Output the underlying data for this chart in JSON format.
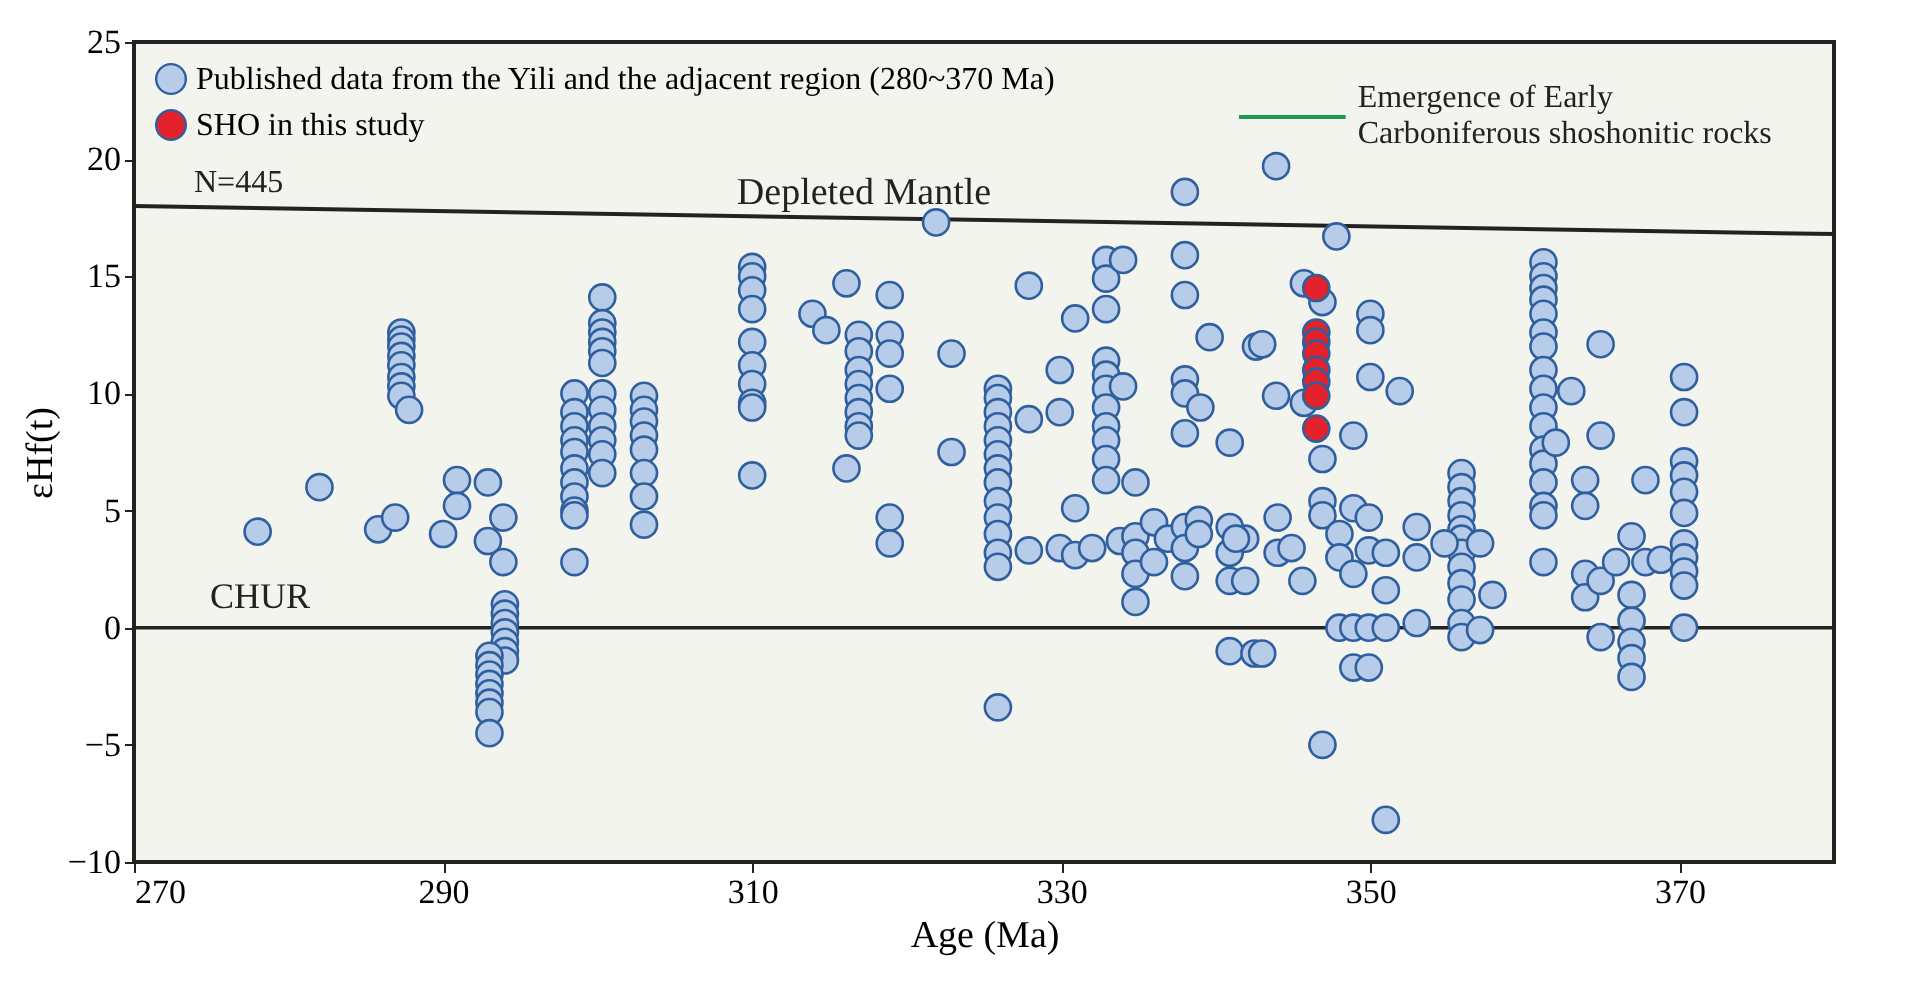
{
  "chart_data": {
    "type": "scatter",
    "xlabel": "Age (Ma)",
    "ylabel": "εHf(t)",
    "xlim": [
      270,
      380
    ],
    "xticks": [
      270,
      290,
      310,
      330,
      350,
      370
    ],
    "ylim": [
      -10,
      25
    ],
    "yticks": [
      -10,
      -5,
      0,
      5,
      10,
      15,
      20,
      25
    ],
    "grid": false,
    "legend": "top left",
    "marker": "circle",
    "ref_lines": [
      {
        "axis": "y",
        "value": 0,
        "label": "CHUR"
      }
    ],
    "annotations": [
      "N=445",
      {
        "text": "Emergence of Early Carboniferous shoshonitic rocks",
        "x": 348.4,
        "y": 21.8
      }
    ],
    "series": [
      {
        "name": "Published data from the Yili and the adjacent region (280~370 Ma)",
        "color": "#b7cce8",
        "x": [
          278,
          282,
          285.8,
          286.9,
          287.3,
          287.3,
          287.3,
          287.3,
          287.3,
          287.3,
          287.3,
          287.3,
          287.8,
          290,
          290.9,
          290.9,
          292.9,
          293.9,
          292.9,
          293.9,
          294,
          294,
          294,
          294,
          294,
          294,
          294,
          293,
          293,
          293,
          293,
          293,
          293,
          293,
          293,
          298.5,
          298.5,
          298.5,
          298.5,
          298.5,
          298.5,
          298.5,
          298.5,
          298.5,
          298.5,
          298.5,
          300.3,
          300.3,
          300.3,
          300.3,
          300.3,
          300.3,
          300.3,
          300.3,
          300.3,
          300.3,
          300.3,
          300.3,
          303,
          303,
          303,
          303,
          303,
          303,
          303,
          303,
          321.9,
          310,
          310,
          310,
          310,
          310,
          310,
          310,
          310,
          310,
          310,
          313.9,
          314.8,
          316.1,
          316.9,
          316.9,
          316.9,
          316.9,
          316.9,
          316.9,
          316.9,
          316.9,
          316.1,
          318.9,
          318.9,
          318.9,
          318.9,
          318.9,
          318.9,
          322.9,
          322.9,
          325.9,
          325.9,
          325.9,
          325.9,
          325.9,
          325.9,
          325.9,
          325.9,
          325.9,
          325.9,
          325.9,
          325.9,
          325.9,
          325.9,
          327.9,
          327.9,
          327.9,
          329.9,
          329.9,
          329.9,
          330.9,
          330.9,
          330.9,
          332,
          332.9,
          332.9,
          332.9,
          332.9,
          332.9,
          332.9,
          332.9,
          332.9,
          332.9,
          332.9,
          332.9,
          334,
          334,
          334.8,
          333.8,
          334.8,
          334.8,
          334.8,
          334.8,
          336,
          336,
          336.9,
          338,
          338,
          338,
          338.9,
          338.9,
          340.9,
          340.9,
          340.9,
          341.9,
          341.9,
          340.9,
          342.5,
          343,
          338,
          338,
          338,
          339.6,
          338,
          338,
          339,
          338,
          340.9,
          342.6,
          343.9,
          347.8,
          345.7,
          346.9,
          343,
          343.9,
          345.7,
          350,
          350,
          350,
          351.9,
          348.9,
          346.9,
          346.9,
          346.9,
          341.3,
          344,
          344,
          344.9,
          345.6,
          348,
          348,
          348.9,
          348.9,
          349.9,
          349.9,
          351,
          351,
          353,
          353,
          348,
          348.9,
          349.9,
          351,
          353,
          348.9,
          349.9,
          346.9,
          351,
          355.9,
          355.9,
          355.9,
          355.9,
          355.9,
          355.9,
          355.9,
          355.9,
          355.9,
          355.9,
          355.9,
          355.9,
          354.8,
          357.1,
          357.1,
          357.9,
          361.2,
          361.2,
          361.2,
          361.2,
          361.2,
          361.2,
          361.2,
          361.2,
          361.2,
          361.2,
          361.2,
          361.2,
          361.2,
          361.2,
          361.2,
          361.2,
          361.2,
          362,
          363,
          363.9,
          363.9,
          364.9,
          364.9,
          364.9,
          363.9,
          363.9,
          364.9,
          365.9,
          366.9,
          366.9,
          366.9,
          366.9,
          366.9,
          366.9,
          367.8,
          367.8,
          368.8,
          370.3,
          370.3,
          370.3,
          370.3,
          370.3,
          370.3,
          370.3,
          370.3,
          370.3,
          370.3,
          370.3
        ],
        "values": [
          4.1,
          6.0,
          4.2,
          4.7,
          12.6,
          12.3,
          12.0,
          11.6,
          11.2,
          10.7,
          10.3,
          9.9,
          9.3,
          4.0,
          6.3,
          5.2,
          6.2,
          4.7,
          3.7,
          2.8,
          1.0,
          0.6,
          0.2,
          -0.2,
          -0.6,
          -1.0,
          -1.4,
          -1.2,
          -1.6,
          -2.0,
          -2.4,
          -2.8,
          -3.2,
          -3.6,
          -4.5,
          10.0,
          9.2,
          8.6,
          8.0,
          7.5,
          6.8,
          6.2,
          5.6,
          5.0,
          4.8,
          2.8,
          14.1,
          13.0,
          12.6,
          12.2,
          11.8,
          11.3,
          10.0,
          9.3,
          8.6,
          8.0,
          7.4,
          6.6,
          9.9,
          9.3,
          8.8,
          8.2,
          7.6,
          6.6,
          5.6,
          4.4,
          17.3,
          15.4,
          15.0,
          14.4,
          13.6,
          12.2,
          11.2,
          10.4,
          9.6,
          9.4,
          6.5,
          13.4,
          12.7,
          14.7,
          12.5,
          11.8,
          11.0,
          10.4,
          9.8,
          9.2,
          8.6,
          8.2,
          6.8,
          14.2,
          12.5,
          11.7,
          10.2,
          4.7,
          3.6,
          11.7,
          7.5,
          10.2,
          9.8,
          9.2,
          8.6,
          8.0,
          7.4,
          6.8,
          6.2,
          5.4,
          4.7,
          4.0,
          3.2,
          2.6,
          -3.4,
          14.6,
          8.9,
          3.3,
          11.0,
          9.2,
          3.4,
          13.2,
          5.1,
          3.1,
          3.4,
          15.7,
          14.9,
          13.6,
          11.4,
          10.8,
          10.2,
          9.4,
          8.6,
          8.0,
          7.2,
          6.3,
          15.7,
          10.3,
          6.2,
          3.7,
          3.9,
          3.2,
          2.3,
          1.1,
          4.5,
          2.8,
          3.8,
          4.3,
          3.4,
          2.2,
          4.6,
          4.0,
          4.3,
          3.2,
          2.0,
          3.8,
          2.0,
          -1.0,
          -1.1,
          -1.1,
          18.6,
          15.9,
          14.2,
          12.4,
          10.6,
          10.0,
          9.4,
          8.3,
          7.9,
          12.0,
          19.7,
          16.7,
          14.7,
          13.9,
          12.1,
          9.9,
          9.6,
          13.4,
          12.7,
          10.7,
          10.1,
          8.2,
          7.2,
          5.4,
          4.8,
          3.8,
          4.7,
          3.2,
          3.4,
          2.0,
          4.0,
          3.0,
          5.1,
          2.3,
          4.7,
          3.3,
          3.2,
          1.6,
          4.3,
          3.0,
          0.0,
          0.0,
          0.0,
          0.0,
          0.2,
          -1.7,
          -1.7,
          -5.0,
          -8.2,
          6.6,
          6.0,
          5.4,
          4.8,
          4.2,
          3.8,
          3.2,
          2.6,
          1.9,
          1.2,
          0.2,
          -0.4,
          3.6,
          3.6,
          -0.1,
          1.4,
          15.6,
          15.0,
          14.5,
          14.0,
          13.4,
          12.6,
          12.0,
          11.0,
          10.2,
          9.4,
          8.6,
          7.6,
          7.0,
          6.2,
          5.2,
          4.8,
          2.8,
          7.9,
          10.1,
          6.3,
          5.2,
          12.1,
          8.2,
          -0.4,
          2.3,
          1.3,
          2.0,
          2.8,
          3.9,
          1.4,
          0.3,
          -0.6,
          -1.3,
          -2.1,
          6.3,
          2.8,
          2.9,
          10.7,
          9.2,
          7.1,
          6.5,
          5.8,
          4.9,
          3.6,
          3.0,
          2.4,
          1.8,
          0.0
        ]
      },
      {
        "name": "SHO in this study",
        "color": "#e3222b",
        "x": [
          346.5,
          346.5,
          346.5,
          346.5,
          346.5,
          346.5,
          346.5,
          346.5
        ],
        "values": [
          14.5,
          12.6,
          12.2,
          11.7,
          11.0,
          10.5,
          9.9,
          8.5
        ]
      },
      {
        "name": "Depleted Mantle",
        "color": "#222222",
        "type": "line",
        "marker": "none",
        "x": [
          270,
          380
        ],
        "values": [
          18.0,
          16.8
        ]
      },
      {
        "color": "#1a9a50",
        "type": "line",
        "marker": "none",
        "x": [
          341.5,
          348.4
        ],
        "values": [
          21.8,
          21.8
        ]
      }
    ]
  }
}
